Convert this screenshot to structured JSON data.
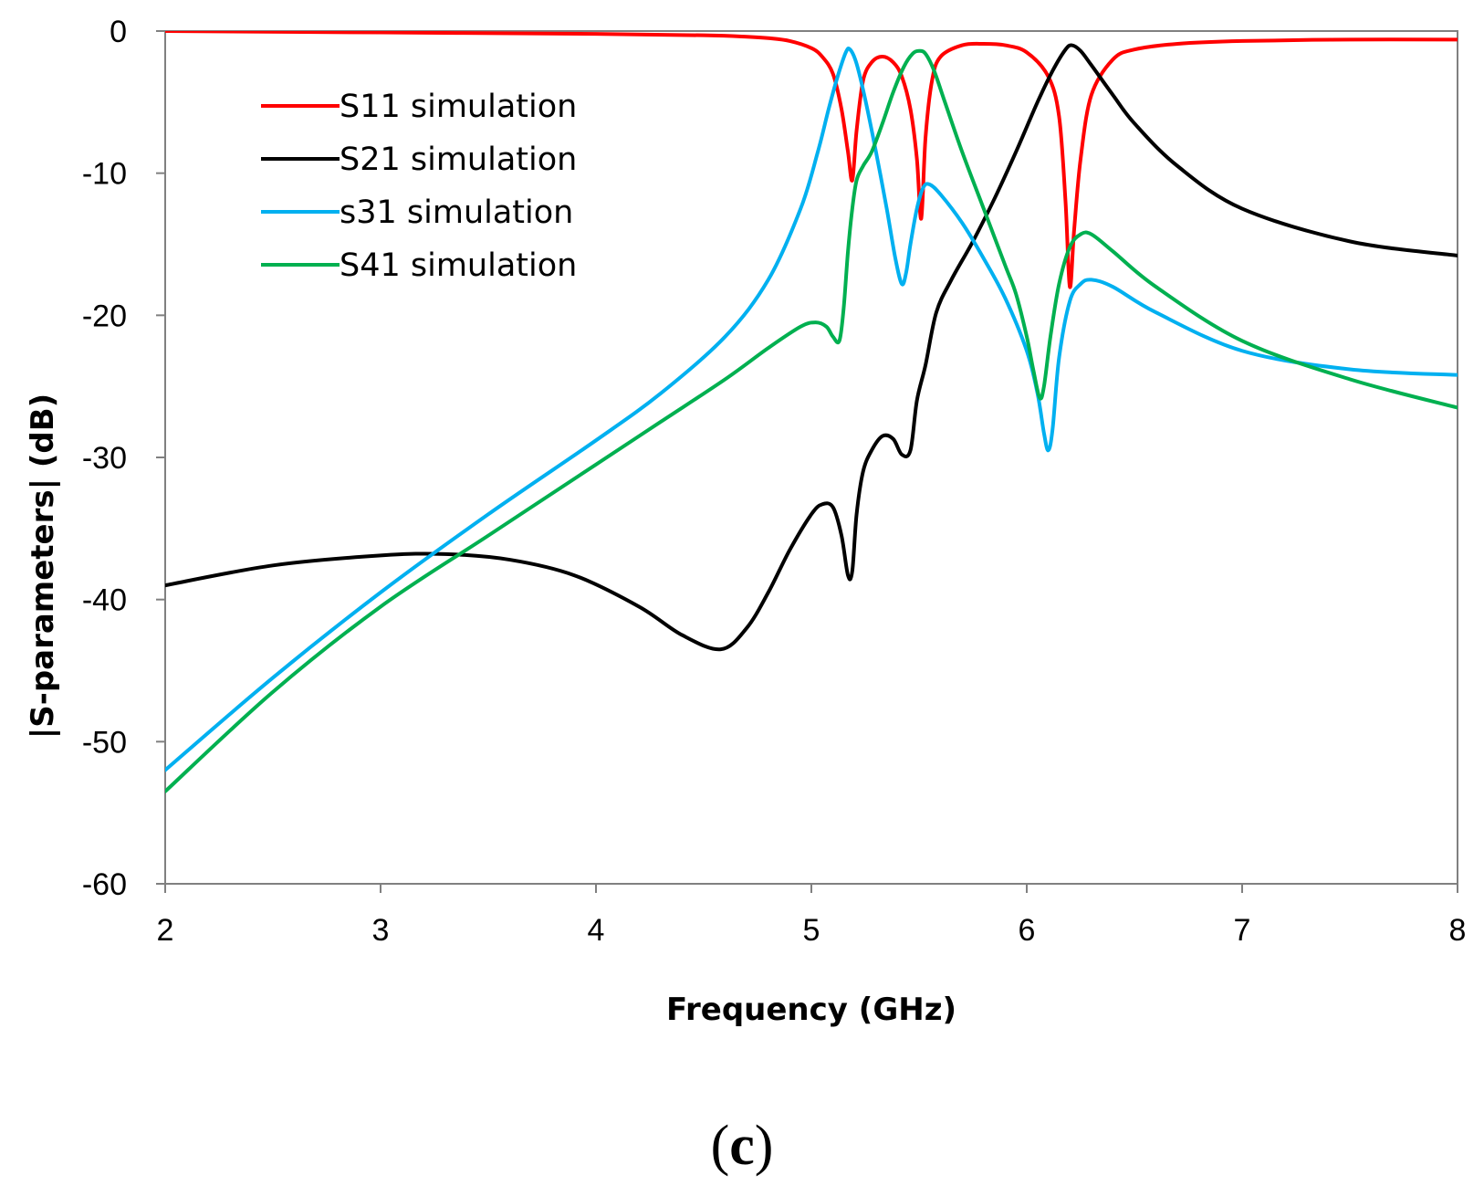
{
  "chart_data": {
    "type": "line",
    "title": "",
    "xlabel": "Frequency (GHz)",
    "ylabel": "|S-parameters| (dB)",
    "xlim": [
      2,
      8
    ],
    "ylim": [
      -60,
      0
    ],
    "xticks": [
      2,
      3,
      4,
      5,
      6,
      7,
      8
    ],
    "yticks": [
      0,
      -10,
      -20,
      -30,
      -40,
      -50,
      -60
    ],
    "grid": false,
    "legend_position": "top-left",
    "caption": {
      "open": "(",
      "letter": "c",
      "close": ")"
    },
    "series": [
      {
        "name": "S11 simulation",
        "color": "#ff0000",
        "x": [
          2.0,
          3.0,
          4.0,
          4.5,
          4.7,
          4.8,
          4.9,
          5.0,
          5.05,
          5.1,
          5.14,
          5.17,
          5.19,
          5.21,
          5.24,
          5.28,
          5.33,
          5.38,
          5.42,
          5.46,
          5.49,
          5.51,
          5.53,
          5.56,
          5.6,
          5.7,
          5.8,
          5.9,
          6.0,
          6.1,
          6.15,
          6.18,
          6.2,
          6.22,
          6.25,
          6.3,
          6.4,
          6.5,
          6.7,
          7.0,
          7.5,
          8.0
        ],
        "y": [
          0,
          -0.1,
          -0.2,
          -0.3,
          -0.4,
          -0.5,
          -0.7,
          -1.2,
          -1.8,
          -3.0,
          -5.5,
          -8.5,
          -10.5,
          -7.0,
          -3.5,
          -2.2,
          -1.8,
          -2.2,
          -3.2,
          -5.5,
          -9.0,
          -13.2,
          -7.5,
          -3.5,
          -1.8,
          -1.0,
          -0.9,
          -1.0,
          -1.5,
          -3.2,
          -6.0,
          -12.0,
          -18.0,
          -14.0,
          -9.0,
          -4.5,
          -2.0,
          -1.3,
          -0.9,
          -0.7,
          -0.6,
          -0.6
        ]
      },
      {
        "name": "S21 simulation",
        "color": "#000000",
        "x": [
          2.0,
          2.5,
          3.0,
          3.3,
          3.6,
          3.9,
          4.2,
          4.4,
          4.58,
          4.7,
          4.8,
          4.9,
          5.0,
          5.05,
          5.1,
          5.14,
          5.17,
          5.19,
          5.21,
          5.24,
          5.28,
          5.33,
          5.38,
          5.42,
          5.46,
          5.49,
          5.53,
          5.58,
          5.65,
          5.75,
          5.85,
          5.95,
          6.05,
          6.12,
          6.18,
          6.21,
          6.25,
          6.3,
          6.4,
          6.5,
          6.7,
          7.0,
          7.5,
          8.0
        ],
        "y": [
          -39,
          -37.6,
          -36.9,
          -36.8,
          -37.2,
          -38.3,
          -40.5,
          -42.5,
          -43.5,
          -42.0,
          -39.5,
          -36.5,
          -34.0,
          -33.3,
          -33.5,
          -35.5,
          -38.3,
          -38.0,
          -34.0,
          -31.0,
          -29.5,
          -28.5,
          -28.7,
          -29.8,
          -29.5,
          -26.0,
          -23.5,
          -19.8,
          -17.5,
          -14.8,
          -11.8,
          -8.5,
          -5.0,
          -2.8,
          -1.3,
          -1.0,
          -1.4,
          -2.4,
          -4.5,
          -6.5,
          -9.5,
          -12.5,
          -14.8,
          -15.8
        ]
      },
      {
        "name": "s31 simulation",
        "color": "#00b0f0",
        "x": [
          2.0,
          2.5,
          3.0,
          3.5,
          4.0,
          4.3,
          4.6,
          4.8,
          4.95,
          5.03,
          5.08,
          5.12,
          5.16,
          5.18,
          5.21,
          5.25,
          5.3,
          5.35,
          5.39,
          5.42,
          5.44,
          5.46,
          5.49,
          5.52,
          5.55,
          5.6,
          5.7,
          5.8,
          5.9,
          6.0,
          6.05,
          6.08,
          6.1,
          6.12,
          6.15,
          6.2,
          6.25,
          6.3,
          6.4,
          6.6,
          7.0,
          7.5,
          8.0
        ],
        "y": [
          -52,
          -45.5,
          -39.5,
          -34.0,
          -28.8,
          -25.5,
          -21.5,
          -17.5,
          -12.5,
          -8.5,
          -5.5,
          -3.3,
          -1.5,
          -1.3,
          -2.3,
          -4.8,
          -8.5,
          -12.5,
          -16.0,
          -17.8,
          -17.0,
          -15.0,
          -12.5,
          -11.0,
          -10.8,
          -11.5,
          -13.5,
          -16.0,
          -18.8,
          -22.5,
          -25.5,
          -28.3,
          -29.5,
          -28.0,
          -23.0,
          -19.0,
          -17.8,
          -17.5,
          -18.0,
          -19.8,
          -22.5,
          -23.8,
          -24.2
        ]
      },
      {
        "name": "S41 simulation",
        "color": "#00b050",
        "x": [
          2.0,
          2.5,
          3.0,
          3.5,
          4.0,
          4.3,
          4.6,
          4.8,
          4.95,
          5.02,
          5.07,
          5.1,
          5.13,
          5.15,
          5.17,
          5.19,
          5.21,
          5.24,
          5.28,
          5.33,
          5.38,
          5.43,
          5.47,
          5.5,
          5.53,
          5.57,
          5.62,
          5.7,
          5.8,
          5.9,
          5.95,
          6.0,
          6.03,
          6.06,
          6.08,
          6.11,
          6.15,
          6.2,
          6.25,
          6.3,
          6.4,
          6.6,
          7.0,
          7.5,
          8.0
        ],
        "y": [
          -53.5,
          -46.5,
          -40.5,
          -35.5,
          -30.5,
          -27.5,
          -24.5,
          -22.3,
          -20.8,
          -20.5,
          -20.8,
          -21.5,
          -21.8,
          -19.5,
          -15.5,
          -12.5,
          -10.5,
          -9.5,
          -8.5,
          -6.5,
          -4.3,
          -2.5,
          -1.6,
          -1.4,
          -1.6,
          -2.8,
          -5.0,
          -8.5,
          -12.5,
          -16.5,
          -18.5,
          -21.5,
          -23.8,
          -25.8,
          -25.0,
          -21.5,
          -17.8,
          -15.2,
          -14.3,
          -14.3,
          -15.5,
          -18.0,
          -21.8,
          -24.5,
          -26.5
        ]
      }
    ]
  }
}
